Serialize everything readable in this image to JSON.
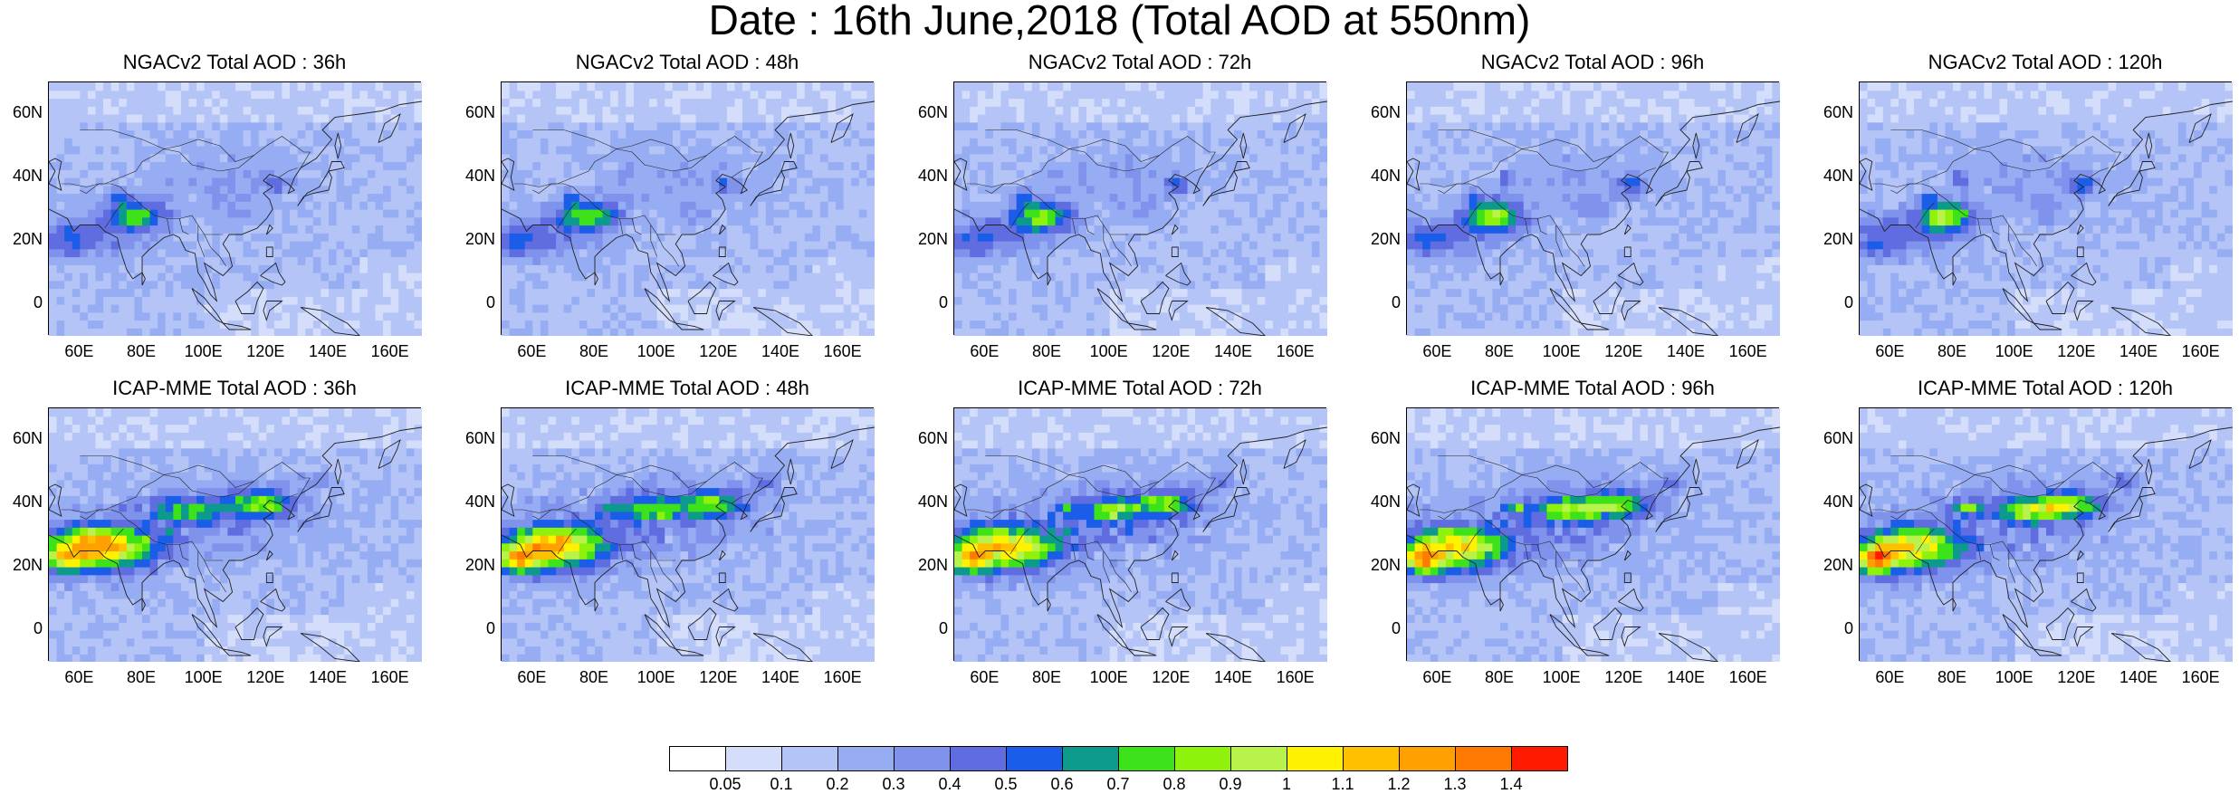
{
  "title": "Date : 16th June,2018 (Total AOD at 550nm)",
  "x_tick_labels": [
    "60E",
    "80E",
    "100E",
    "120E",
    "140E",
    "160E"
  ],
  "y_tick_labels": [
    "60N",
    "40N",
    "20N",
    "0"
  ],
  "rows": [
    {
      "model": "NGACv2",
      "panels": [
        {
          "title": "NGACv2 Total AOD : 36h",
          "lead": "36h"
        },
        {
          "title": "NGACv2 Total AOD : 48h",
          "lead": "48h"
        },
        {
          "title": "NGACv2 Total AOD : 72h",
          "lead": "72h"
        },
        {
          "title": "NGACv2 Total AOD : 96h",
          "lead": "96h"
        },
        {
          "title": "NGACv2 Total AOD : 120h",
          "lead": "120h"
        }
      ]
    },
    {
      "model": "ICAP-MME",
      "panels": [
        {
          "title": "ICAP-MME Total AOD : 36h",
          "lead": "36h"
        },
        {
          "title": "ICAP-MME Total AOD : 48h",
          "lead": "48h"
        },
        {
          "title": "ICAP-MME Total AOD : 72h",
          "lead": "72h"
        },
        {
          "title": "ICAP-MME Total AOD : 96h",
          "lead": "96h"
        },
        {
          "title": "ICAP-MME Total AOD : 120h",
          "lead": "120h"
        }
      ]
    }
  ],
  "colorbar": {
    "labels": [
      "0.05",
      "0.1",
      "0.2",
      "0.3",
      "0.4",
      "0.5",
      "0.6",
      "0.7",
      "0.8",
      "0.9",
      "1",
      "1.1",
      "1.2",
      "1.3",
      "1.4"
    ],
    "colors": [
      "#ffffff",
      "#d4defb",
      "#b4c4f6",
      "#96acf3",
      "#7f92ec",
      "#5f6de0",
      "#1a5de8",
      "#0c9a8c",
      "#3ee21a",
      "#8ef20a",
      "#b9f24a",
      "#fff200",
      "#ffc000",
      "#ffa000",
      "#ff7a00",
      "#ff1a00"
    ]
  }
}
